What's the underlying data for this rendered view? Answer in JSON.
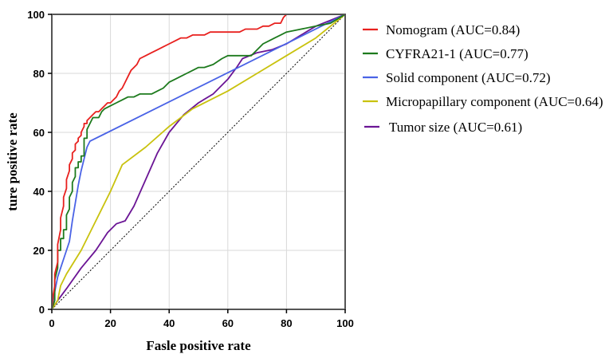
{
  "chart_data": {
    "type": "line",
    "title": "",
    "xlabel": "Fasle positive rate",
    "ylabel": "ture positive rate",
    "xlim": [
      0,
      100
    ],
    "ylim": [
      0,
      100
    ],
    "x_ticks": [
      "0",
      "20",
      "40",
      "60",
      "80",
      "100"
    ],
    "y_ticks": [
      "0",
      "20",
      "40",
      "60",
      "80",
      "100"
    ],
    "grid": true,
    "legend_position": "right",
    "reference_line": "diagonal",
    "series": [
      {
        "name": "Nomogram (AUC=0.84)",
        "color": "#e8201e",
        "x": [
          0,
          0.5,
          1,
          1,
          2,
          2,
          3,
          3,
          4,
          4,
          5,
          5,
          6,
          6,
          7,
          7,
          8,
          8,
          9,
          9,
          10,
          10,
          11,
          11,
          12,
          12,
          13,
          14,
          15,
          16,
          17,
          18,
          19,
          20,
          21,
          22,
          23,
          24,
          25,
          26,
          27,
          28,
          29,
          30,
          32,
          34,
          36,
          38,
          40,
          42,
          44,
          46,
          48,
          50,
          52,
          54,
          56,
          58,
          60,
          62,
          64,
          66,
          68,
          70,
          72,
          74,
          76,
          78,
          79,
          80,
          90,
          100
        ],
        "y": [
          0,
          5,
          8,
          12,
          16,
          22,
          27,
          31,
          35,
          38,
          41,
          44,
          47,
          49,
          51,
          53,
          54,
          56,
          57,
          58,
          59,
          60,
          62,
          63,
          63,
          64,
          65,
          66,
          67,
          67,
          68,
          69,
          70,
          70,
          71,
          72,
          74,
          75,
          77,
          79,
          81,
          82,
          83,
          85,
          86,
          87,
          88,
          89,
          90,
          91,
          92,
          92,
          93,
          93,
          93,
          94,
          94,
          94,
          94,
          94,
          94,
          95,
          95,
          95,
          96,
          96,
          97,
          97,
          99,
          100,
          100,
          100
        ]
      },
      {
        "name": "CYFRA21-1 (AUC=0.77)",
        "color": "#1d7a1d",
        "x": [
          0,
          1,
          1,
          2,
          2,
          3,
          3,
          4,
          4,
          5,
          5,
          6,
          6,
          7,
          7,
          8,
          8,
          9,
          9,
          10,
          10,
          11,
          11,
          12,
          12,
          13,
          14,
          15,
          16,
          17,
          18,
          20,
          22,
          24,
          26,
          28,
          30,
          32,
          34,
          36,
          38,
          40,
          42,
          44,
          46,
          48,
          50,
          52,
          55,
          58,
          60,
          62,
          64,
          66,
          68,
          70,
          72,
          74,
          76,
          78,
          80,
          85,
          90,
          95,
          100
        ],
        "y": [
          0,
          3,
          10,
          14,
          20,
          20,
          24,
          24,
          27,
          27,
          32,
          34,
          38,
          40,
          43,
          45,
          48,
          48,
          50,
          50,
          52,
          52,
          58,
          58,
          61,
          63,
          65,
          65,
          65,
          67,
          68,
          69,
          70,
          71,
          72,
          72,
          73,
          73,
          73,
          74,
          75,
          77,
          78,
          79,
          80,
          81,
          82,
          82,
          83,
          85,
          86,
          86,
          86,
          86,
          86,
          88,
          90,
          91,
          92,
          93,
          94,
          95,
          96,
          97,
          100
        ]
      },
      {
        "name": "Solid component (AUC=0.72)",
        "color": "#4a63e6",
        "x": [
          0,
          1,
          2,
          3,
          4,
          5,
          6,
          7,
          8,
          9,
          10,
          11,
          12,
          13,
          100
        ],
        "y": [
          0,
          6,
          11,
          14,
          17,
          20,
          23,
          30,
          36,
          42,
          47,
          51,
          55,
          57,
          100
        ]
      },
      {
        "name": "Micropapillary component (AUC=0.64)",
        "color": "#c9c20e",
        "x": [
          0,
          2,
          3,
          5,
          10,
          15,
          20,
          24,
          32,
          40,
          48,
          60,
          70,
          80,
          90,
          100
        ],
        "y": [
          0,
          3,
          8,
          12,
          20,
          30,
          40,
          49,
          55,
          62,
          68,
          74,
          80,
          86,
          92,
          100
        ]
      },
      {
        "name": "Tumor size (AUC=0.61)",
        "color": "#6b1595",
        "x": [
          0,
          2,
          5,
          10,
          15,
          19,
          22,
          25,
          28,
          32,
          36,
          40,
          45,
          50,
          55,
          60,
          63,
          65,
          70,
          75,
          80,
          85,
          90,
          95,
          100
        ],
        "y": [
          0,
          3,
          7,
          14,
          20,
          26,
          29,
          30,
          35,
          44,
          53,
          60,
          66,
          70,
          73,
          78,
          82,
          85,
          87,
          88,
          90,
          93,
          96,
          98,
          100
        ]
      }
    ]
  }
}
